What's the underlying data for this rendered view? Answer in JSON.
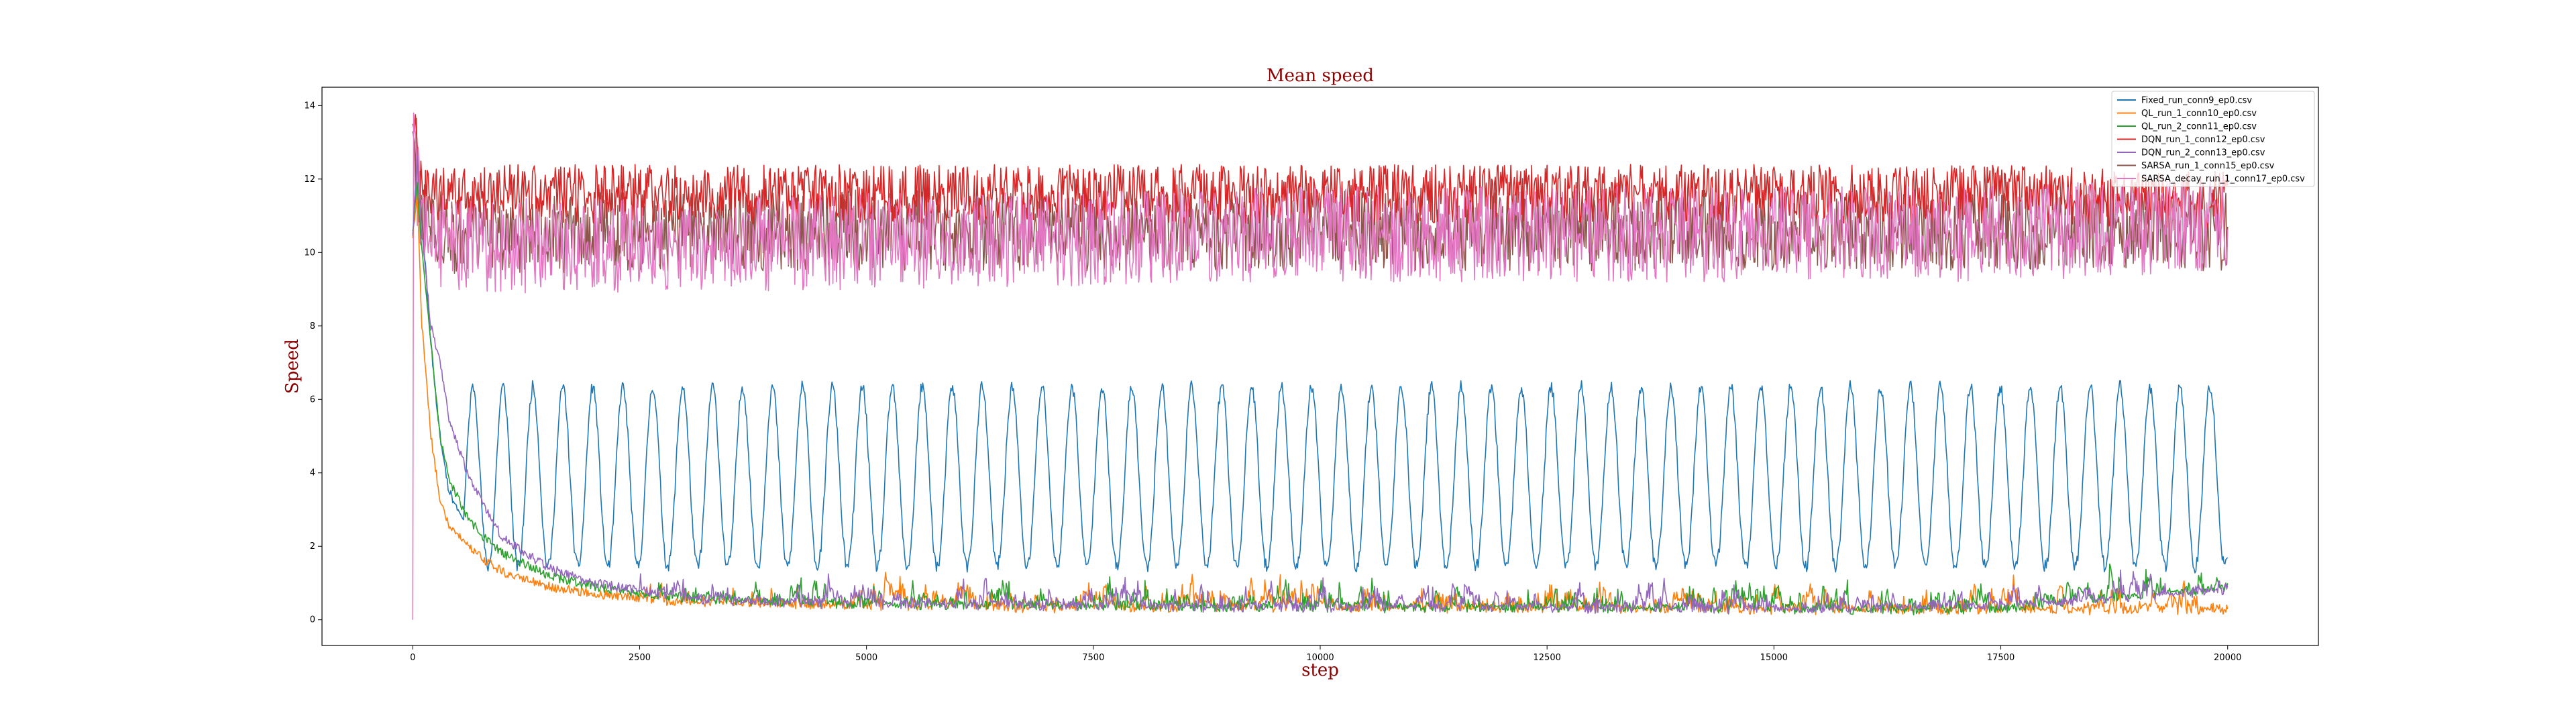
{
  "chart_data": {
    "type": "line",
    "title": "Mean speed",
    "xlabel": "step",
    "ylabel": "Speed",
    "xlim": [
      -1000,
      21000
    ],
    "ylim": [
      -0.7,
      14.5
    ],
    "xticks": [
      0,
      2500,
      5000,
      7500,
      10000,
      12500,
      15000,
      17500,
      20000
    ],
    "yticks": [
      0,
      2,
      4,
      6,
      8,
      10,
      12,
      14
    ],
    "legend_position": "top-right",
    "title_color": "#8b0000",
    "series": [
      {
        "name": "Fixed_run_conn9_ep0.csv",
        "color": "#1f77b4",
        "x": [
          0,
          50,
          100,
          200,
          300,
          400,
          600,
          800,
          1000,
          1500,
          2000,
          2500,
          3000,
          4000,
          5000,
          7500,
          10000,
          12500,
          15000,
          17500,
          20000
        ],
        "y": [
          10.5,
          12.5,
          11.0,
          7.5,
          5.0,
          3.5,
          2.5,
          2.2,
          2.0,
          1.8,
          1.6,
          1.5,
          1.5,
          1.4,
          1.4,
          1.4,
          1.4,
          1.4,
          1.4,
          1.4,
          1.5
        ],
        "oscillation": {
          "period": 330,
          "min": 1.2,
          "max": 6.5,
          "start": 500
        }
      },
      {
        "name": "QL_run_1_conn10_ep0.csv",
        "color": "#ff7f0e",
        "x": [
          0,
          50,
          100,
          200,
          300,
          400,
          600,
          800,
          1000,
          1500,
          2000,
          2500,
          3000,
          4000,
          5000,
          7500,
          10000,
          12500,
          15000,
          17500,
          20000
        ],
        "y": [
          10.5,
          11.5,
          8.0,
          5.0,
          3.3,
          2.6,
          2.0,
          1.6,
          1.3,
          0.9,
          0.7,
          0.6,
          0.5,
          0.45,
          0.4,
          0.35,
          0.35,
          0.35,
          0.3,
          0.3,
          0.3
        ]
      },
      {
        "name": "QL_run_2_conn11_ep0.csv",
        "color": "#2ca02c",
        "x": [
          0,
          50,
          100,
          200,
          300,
          400,
          600,
          800,
          1000,
          1500,
          2000,
          2500,
          3000,
          4000,
          5000,
          7500,
          10000,
          12500,
          15000,
          17500,
          20000
        ],
        "y": [
          10.5,
          12.0,
          10.0,
          7.5,
          5.0,
          3.8,
          2.8,
          2.2,
          1.8,
          1.2,
          0.9,
          0.7,
          0.6,
          0.5,
          0.45,
          0.4,
          0.35,
          0.35,
          0.3,
          0.3,
          0.9
        ]
      },
      {
        "name": "DQN_run_1_conn12_ep0.csv",
        "color": "#d62728",
        "x": [
          0,
          50,
          100,
          500,
          1000,
          2500,
          5000,
          7500,
          10000,
          12500,
          15000,
          17500,
          20000
        ],
        "y": [
          13.5,
          13.0,
          11.5,
          11.5,
          11.6,
          11.6,
          11.6,
          11.6,
          11.6,
          11.6,
          11.6,
          11.6,
          11.4
        ]
      },
      {
        "name": "DQN_run_2_conn13_ep0.csv",
        "color": "#9467bd",
        "x": [
          0,
          50,
          100,
          200,
          300,
          400,
          600,
          800,
          1000,
          1500,
          2000,
          2500,
          3000,
          4000,
          5000,
          7500,
          10000,
          12500,
          15000,
          17500,
          20000
        ],
        "y": [
          10.5,
          12.5,
          10.5,
          8.0,
          7.0,
          5.5,
          4.0,
          3.0,
          2.2,
          1.4,
          1.0,
          0.8,
          0.6,
          0.5,
          0.45,
          0.4,
          0.35,
          0.35,
          0.3,
          0.4,
          0.8
        ]
      },
      {
        "name": "SARSA_run_1_conn15_ep0.csv",
        "color": "#8c564b",
        "x": [
          0,
          50,
          100,
          500,
          1000,
          2500,
          5000,
          7500,
          10000,
          12500,
          15000,
          17500,
          20000
        ],
        "y": [
          13.3,
          12.5,
          10.8,
          10.5,
          10.5,
          10.6,
          10.6,
          10.6,
          10.6,
          10.6,
          10.6,
          10.6,
          10.6
        ]
      },
      {
        "name": "SARSA_decay_run_1_conn17_ep0.csv",
        "color": "#e377c2",
        "x": [
          0,
          10,
          50,
          100,
          500,
          1000,
          2500,
          5000,
          7500,
          10000,
          12500,
          15000,
          17500,
          20000
        ],
        "y": [
          0.0,
          13.8,
          12.0,
          10.5,
          10.2,
          10.2,
          10.2,
          10.3,
          10.4,
          10.5,
          10.5,
          10.5,
          10.5,
          10.8
        ]
      }
    ]
  }
}
